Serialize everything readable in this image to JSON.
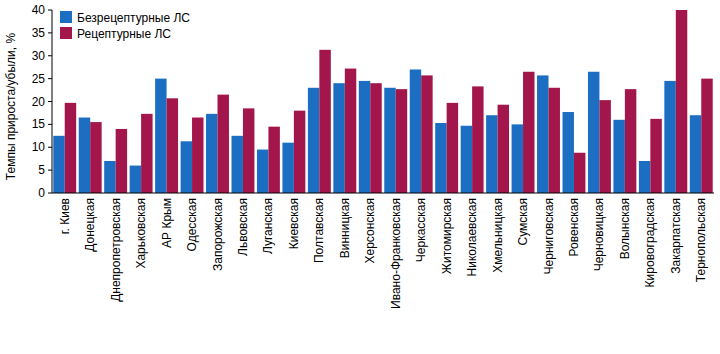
{
  "chart_data": {
    "type": "bar",
    "y_label": "Темпы прироста/убыли, %",
    "categories": [
      "г. Киев",
      "Донецкая",
      "Днепропетровская",
      "Харьковская",
      "АР Крым",
      "Одесская",
      "Запорожская",
      "Львовская",
      "Луганская",
      "Киевская",
      "Полтавская",
      "Винницкая",
      "Херсонская",
      "Ивано-Франковская",
      "Черкасская",
      "Житомирская",
      "Николаевская",
      "Хмельницкая",
      "Сумская",
      "Черниговская",
      "Ровенская",
      "Черновицкая",
      "Волынская",
      "Кировоградская",
      "Закарпатская",
      "Тернопольская"
    ],
    "series": [
      {
        "name": "Безрецептурные ЛС",
        "color": "#1c6ec2",
        "values": [
          12.5,
          16.5,
          7,
          6,
          25,
          11.3,
          17.3,
          12.5,
          9.5,
          11,
          23,
          24,
          24.5,
          23,
          27,
          15.3,
          14.7,
          17,
          15,
          25.7,
          17.7,
          26.5,
          16,
          7,
          24.5,
          17
        ]
      },
      {
        "name": "Рецептурные ЛС",
        "color": "#a3164c",
        "values": [
          19.7,
          15.5,
          14,
          17.3,
          20.7,
          16.5,
          21.5,
          18.5,
          14.5,
          18,
          31.3,
          27.2,
          24,
          22.7,
          25.7,
          19.7,
          23.3,
          19.3,
          26.5,
          23,
          8.8,
          20.3,
          22.7,
          16.2,
          40,
          25
        ]
      }
    ],
    "ylim": [
      0,
      40
    ],
    "yticks": [
      0,
      5,
      10,
      15,
      20,
      25,
      30,
      35,
      40
    ],
    "grid": false,
    "legend": "upper-left"
  }
}
